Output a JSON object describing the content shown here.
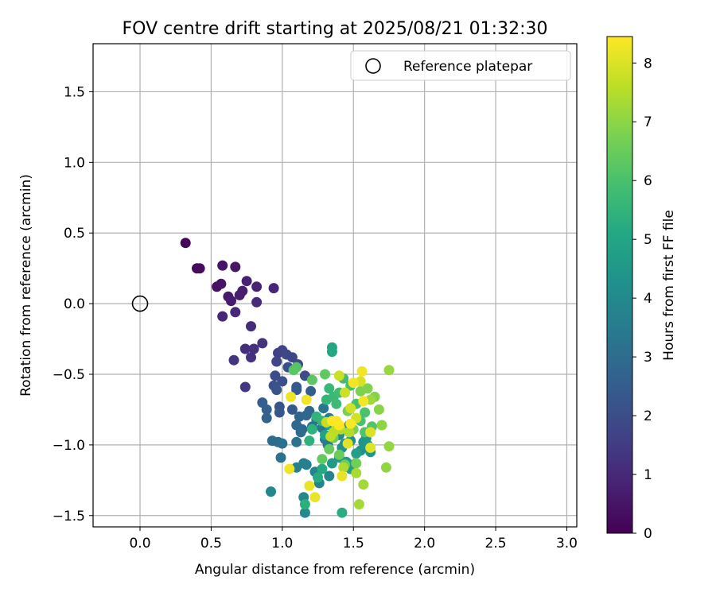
{
  "chart_data": {
    "type": "scatter",
    "title": "FOV centre drift starting at 2025/08/21 01:32:30",
    "xlabel": "Angular distance from reference (arcmin)",
    "ylabel": "Rotation from reference (arcmin)",
    "xlim": [
      -0.33,
      3.07
    ],
    "ylim": [
      -1.58,
      1.84
    ],
    "xticks": [
      "0.0",
      "0.5",
      "1.0",
      "1.5",
      "2.0",
      "2.5",
      "3.0"
    ],
    "yticks": [
      "−1.5",
      "−1.0",
      "−0.5",
      "0.0",
      "0.5",
      "1.0",
      "1.5"
    ],
    "grid": true,
    "legend": {
      "placement": "top-right",
      "entries": [
        "Reference platepar"
      ]
    },
    "reference_point": {
      "x": 0.0,
      "y": 0.0
    },
    "colorbar": {
      "label": "Hours from first FF file",
      "colormap": "viridis",
      "range": [
        0,
        8.45
      ],
      "ticks": [
        "0",
        "1",
        "2",
        "3",
        "4",
        "5",
        "6",
        "7",
        "8"
      ]
    },
    "series": [
      {
        "points": [
          [
            0.32,
            0.43,
            0.1
          ],
          [
            0.4,
            0.25,
            0.2
          ],
          [
            0.42,
            0.25,
            0.25
          ],
          [
            0.54,
            0.12,
            0.4
          ],
          [
            0.57,
            0.14,
            0.45
          ],
          [
            0.58,
            0.27,
            0.5
          ],
          [
            0.67,
            0.26,
            0.55
          ],
          [
            0.62,
            0.05,
            0.6
          ],
          [
            0.64,
            0.02,
            0.65
          ],
          [
            0.7,
            0.06,
            0.7
          ],
          [
            0.72,
            0.09,
            0.75
          ],
          [
            0.75,
            0.16,
            0.8
          ],
          [
            0.82,
            0.12,
            0.85
          ],
          [
            0.94,
            0.11,
            0.9
          ],
          [
            0.58,
            -0.09,
            0.95
          ],
          [
            0.67,
            -0.06,
            1.0
          ],
          [
            0.82,
            0.01,
            1.05
          ],
          [
            0.78,
            -0.16,
            1.1
          ],
          [
            0.74,
            -0.32,
            1.15
          ],
          [
            0.8,
            -0.32,
            1.2
          ],
          [
            0.78,
            -0.38,
            1.25
          ],
          [
            0.86,
            -0.28,
            1.3
          ],
          [
            0.66,
            -0.4,
            1.35
          ],
          [
            0.74,
            -0.59,
            1.4
          ],
          [
            0.97,
            -0.35,
            1.6
          ],
          [
            1.0,
            -0.33,
            1.7
          ],
          [
            0.96,
            -0.41,
            1.75
          ],
          [
            1.03,
            -0.36,
            1.8
          ],
          [
            1.07,
            -0.38,
            1.85
          ],
          [
            1.11,
            -0.43,
            1.9
          ],
          [
            1.16,
            -0.51,
            1.95
          ],
          [
            0.95,
            -0.51,
            2.0
          ],
          [
            1.0,
            -0.55,
            2.05
          ],
          [
            1.04,
            -0.45,
            2.1
          ],
          [
            0.94,
            -0.58,
            2.15
          ],
          [
            0.96,
            -0.61,
            2.2
          ],
          [
            0.98,
            -0.73,
            2.25
          ],
          [
            0.98,
            -0.77,
            2.3
          ],
          [
            1.07,
            -0.75,
            2.35
          ],
          [
            1.1,
            -0.59,
            2.4
          ],
          [
            1.1,
            -0.61,
            2.45
          ],
          [
            1.2,
            -0.62,
            2.5
          ],
          [
            0.86,
            -0.7,
            2.55
          ],
          [
            0.89,
            -0.75,
            2.6
          ],
          [
            0.89,
            -0.81,
            2.65
          ],
          [
            1.12,
            -0.8,
            2.7
          ],
          [
            1.14,
            -0.89,
            2.75
          ],
          [
            1.17,
            -0.79,
            2.8
          ],
          [
            1.19,
            -0.76,
            2.85
          ],
          [
            1.1,
            -0.86,
            2.9
          ],
          [
            1.13,
            -0.91,
            2.95
          ],
          [
            0.93,
            -0.97,
            3.0
          ],
          [
            0.97,
            -0.98,
            3.05
          ],
          [
            1.0,
            -0.99,
            3.1
          ],
          [
            1.1,
            -0.98,
            3.15
          ],
          [
            0.99,
            -1.09,
            3.2
          ],
          [
            1.21,
            -0.87,
            3.25
          ],
          [
            1.24,
            -0.82,
            3.3
          ],
          [
            1.29,
            -0.74,
            3.35
          ],
          [
            1.28,
            -0.88,
            3.4
          ],
          [
            1.3,
            -0.96,
            3.45
          ],
          [
            1.32,
            -1.0,
            3.5
          ],
          [
            1.33,
            -0.81,
            3.55
          ],
          [
            1.15,
            -1.13,
            3.6
          ],
          [
            1.17,
            -1.14,
            3.65
          ],
          [
            1.1,
            -1.16,
            3.7
          ],
          [
            1.23,
            -1.19,
            3.75
          ],
          [
            1.33,
            -1.22,
            3.8
          ],
          [
            1.26,
            -1.27,
            3.85
          ],
          [
            0.92,
            -1.33,
            3.9
          ],
          [
            1.15,
            -1.37,
            3.95
          ],
          [
            1.16,
            -1.48,
            4.0
          ],
          [
            1.4,
            -0.93,
            4.05
          ],
          [
            1.47,
            -0.86,
            4.1
          ],
          [
            1.48,
            -0.97,
            4.15
          ],
          [
            1.44,
            -0.99,
            4.2
          ],
          [
            1.42,
            -1.02,
            4.25
          ],
          [
            1.55,
            -1.04,
            4.3
          ],
          [
            1.57,
            -0.98,
            4.35
          ],
          [
            1.59,
            -0.95,
            4.4
          ],
          [
            1.6,
            -1.0,
            4.45
          ],
          [
            1.62,
            -1.05,
            4.5
          ],
          [
            1.35,
            -1.13,
            4.55
          ],
          [
            1.4,
            -1.09,
            4.6
          ],
          [
            1.45,
            -1.12,
            4.65
          ],
          [
            1.48,
            -1.17,
            4.7
          ],
          [
            1.5,
            -1.14,
            4.75
          ],
          [
            1.52,
            -1.06,
            4.8
          ],
          [
            1.3,
            -0.93,
            4.85
          ],
          [
            1.33,
            -0.86,
            4.9
          ],
          [
            1.35,
            -0.31,
            5.0
          ],
          [
            1.35,
            -0.34,
            5.1
          ],
          [
            1.28,
            -1.17,
            5.15
          ],
          [
            1.25,
            -1.23,
            5.2
          ],
          [
            1.42,
            -1.48,
            5.3
          ],
          [
            1.16,
            -1.42,
            5.35
          ],
          [
            1.19,
            -0.97,
            5.4
          ],
          [
            1.21,
            -0.89,
            5.45
          ],
          [
            1.24,
            -0.8,
            5.5
          ],
          [
            1.28,
            -0.83,
            5.55
          ],
          [
            1.31,
            -0.68,
            5.6
          ],
          [
            1.33,
            -0.6,
            5.65
          ],
          [
            1.36,
            -0.66,
            5.7
          ],
          [
            1.38,
            -0.71,
            5.75
          ],
          [
            1.4,
            -0.63,
            5.8
          ],
          [
            1.43,
            -0.53,
            5.85
          ],
          [
            1.48,
            -0.58,
            5.9
          ],
          [
            1.52,
            -0.71,
            5.95
          ],
          [
            1.55,
            -0.83,
            6.0
          ],
          [
            1.58,
            -0.77,
            6.05
          ],
          [
            1.58,
            -0.91,
            6.1
          ],
          [
            1.63,
            -0.87,
            6.15
          ],
          [
            1.1,
            -0.45,
            6.2
          ],
          [
            1.08,
            -0.47,
            6.25
          ],
          [
            1.21,
            -0.54,
            6.3
          ],
          [
            1.3,
            -0.5,
            6.35
          ],
          [
            1.28,
            -1.1,
            6.4
          ],
          [
            1.33,
            -1.03,
            6.45
          ],
          [
            1.36,
            -0.95,
            6.5
          ],
          [
            1.4,
            -1.07,
            6.55
          ],
          [
            1.44,
            -1.14,
            6.6
          ],
          [
            1.52,
            -1.13,
            6.65
          ],
          [
            1.46,
            -0.76,
            6.7
          ],
          [
            1.5,
            -0.89,
            6.75
          ],
          [
            1.55,
            -0.62,
            6.8
          ],
          [
            1.6,
            -0.6,
            6.85
          ],
          [
            1.65,
            -0.66,
            6.9
          ],
          [
            1.68,
            -0.75,
            6.95
          ],
          [
            1.7,
            -0.86,
            7.0
          ],
          [
            1.73,
            -1.16,
            7.05
          ],
          [
            1.75,
            -1.01,
            7.1
          ],
          [
            1.75,
            -0.47,
            7.15
          ],
          [
            1.62,
            -0.68,
            7.2
          ],
          [
            1.57,
            -1.28,
            7.25
          ],
          [
            1.54,
            -1.42,
            7.3
          ],
          [
            1.52,
            -1.2,
            7.35
          ],
          [
            1.43,
            -1.16,
            7.4
          ],
          [
            1.47,
            -0.91,
            7.45
          ],
          [
            1.41,
            -0.89,
            7.5
          ],
          [
            1.38,
            -0.86,
            7.55
          ],
          [
            1.36,
            -0.91,
            7.6
          ],
          [
            1.34,
            -0.94,
            7.65
          ],
          [
            1.31,
            -0.84,
            7.7
          ],
          [
            1.4,
            -0.51,
            7.75
          ],
          [
            1.44,
            -0.63,
            7.8
          ],
          [
            1.48,
            -0.74,
            7.85
          ],
          [
            1.52,
            -0.81,
            7.9
          ],
          [
            1.55,
            -0.55,
            7.95
          ],
          [
            1.62,
            -0.91,
            8.0
          ],
          [
            1.62,
            -1.02,
            8.05
          ],
          [
            1.46,
            -0.99,
            8.1
          ],
          [
            1.42,
            -1.22,
            8.15
          ],
          [
            1.19,
            -1.29,
            8.2
          ],
          [
            1.23,
            -1.37,
            8.2
          ],
          [
            1.05,
            -1.17,
            8.25
          ],
          [
            1.06,
            -0.66,
            8.25
          ],
          [
            1.17,
            -0.68,
            8.3
          ],
          [
            1.5,
            -0.56,
            8.3
          ],
          [
            1.56,
            -0.48,
            8.3
          ],
          [
            1.57,
            -0.69,
            8.35
          ],
          [
            1.48,
            -0.85,
            8.4
          ],
          [
            1.38,
            -0.83,
            8.4
          ],
          [
            1.4,
            -0.86,
            8.45
          ],
          [
            1.35,
            -0.83,
            8.45
          ]
        ]
      }
    ]
  }
}
